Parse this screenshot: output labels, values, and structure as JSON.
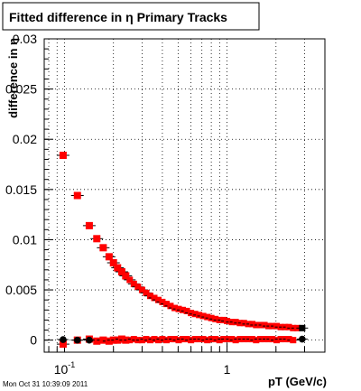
{
  "chart_data": {
    "type": "scatter",
    "title": "Fitted difference in η  Primary Tracks",
    "xlabel": "pT (GeV/c)",
    "ylabel": "difference in η",
    "x_scale": "log",
    "xlim": [
      0.075,
      4.0
    ],
    "ylim": [
      -0.0012,
      0.03
    ],
    "grid": true,
    "yticks": [
      {
        "value": 0,
        "label": "0"
      },
      {
        "value": 0.005,
        "label": "0.005"
      },
      {
        "value": 0.01,
        "label": "0.01"
      },
      {
        "value": 0.015,
        "label": "0.015"
      },
      {
        "value": 0.02,
        "label": "0.02"
      },
      {
        "value": 0.025,
        "label": "0.025"
      },
      {
        "value": 0.03,
        "label": "0.03"
      }
    ],
    "xticks": [
      {
        "value": 0.1,
        "label": "10",
        "sup": "-1"
      },
      {
        "value": 1,
        "label": "1",
        "sup": ""
      }
    ],
    "series": [
      {
        "color": "#ff0000",
        "marker": "square",
        "x": [
          0.098,
          0.12,
          0.142,
          0.158,
          0.173,
          0.188,
          0.2,
          0.212,
          0.225,
          0.238,
          0.252,
          0.267,
          0.283,
          0.3,
          0.318,
          0.337,
          0.357,
          0.378,
          0.4,
          0.424,
          0.449,
          0.476,
          0.504,
          0.534,
          0.566,
          0.6,
          0.636,
          0.673,
          0.713,
          0.756,
          0.8,
          0.848,
          0.898,
          0.952,
          1.0,
          1.07,
          1.13,
          1.2,
          1.27,
          1.35,
          1.43,
          1.51,
          1.6,
          1.7,
          1.8,
          1.9,
          2.02,
          2.14,
          2.27,
          2.4,
          2.55,
          2.7
        ],
        "y": [
          0.0184,
          0.0144,
          0.0114,
          0.0101,
          0.0092,
          0.0083,
          0.0077,
          0.0072,
          0.0068,
          0.0064,
          0.006,
          0.0056,
          0.0053,
          0.005,
          0.0047,
          0.0044,
          0.0042,
          0.004,
          0.0038,
          0.0036,
          0.0034,
          0.0032,
          0.0031,
          0.003,
          0.0029,
          0.0027,
          0.0026,
          0.0025,
          0.0024,
          0.0023,
          0.0022,
          0.0021,
          0.002,
          0.002,
          0.0019,
          0.0018,
          0.0018,
          0.0017,
          0.0017,
          0.0016,
          0.0016,
          0.0015,
          0.0015,
          0.0015,
          0.0014,
          0.0014,
          0.0014,
          0.0013,
          0.0013,
          0.0013,
          0.0012,
          0.0012
        ]
      },
      {
        "color": "#ff0000",
        "marker": "square",
        "x": [
          0.098,
          0.12,
          0.142,
          0.158,
          0.173,
          0.188,
          0.2,
          0.212,
          0.225,
          0.238,
          0.252,
          0.267,
          0.283,
          0.3,
          0.318,
          0.337,
          0.357,
          0.378,
          0.4,
          0.424,
          0.449,
          0.476,
          0.504,
          0.534,
          0.566,
          0.6,
          0.636,
          0.673,
          0.713,
          0.756,
          0.8,
          0.848,
          0.898,
          0.952,
          1.0,
          1.07,
          1.13,
          1.2,
          1.27,
          1.35,
          1.43,
          1.51,
          1.6,
          1.7,
          1.8,
          1.9,
          2.02,
          2.14,
          2.27,
          2.4,
          2.55
        ],
        "y": [
          -0.0004,
          0.0,
          0.0001,
          -0.0001,
          0.0,
          -0.0001,
          0.0,
          0.0,
          0.0001,
          0.0,
          0.0,
          0.0001,
          0.0,
          0.0,
          0.0001,
          0.0,
          0.0001,
          0.0,
          0.0001,
          0.0,
          0.0001,
          0.0001,
          0.0,
          0.0001,
          0.0001,
          0.0,
          0.0001,
          0.0001,
          0.0001,
          0.0,
          0.0001,
          0.0001,
          0.0,
          0.0001,
          0.0001,
          0.0001,
          0.0,
          0.0001,
          0.0001,
          0.0001,
          0.0001,
          0.0,
          0.0001,
          0.0001,
          0.0001,
          0.0001,
          0.0,
          0.0001,
          0.0001,
          0.0001,
          0.0
        ]
      },
      {
        "color": "#000000",
        "marker": "circle",
        "x": [
          0.098,
          0.12,
          0.142,
          2.9
        ],
        "y": [
          5e-05,
          0.0,
          0.0,
          0.0001
        ]
      },
      {
        "color": "#000000",
        "marker": "square",
        "x": [
          2.9
        ],
        "y": [
          0.0012
        ]
      }
    ]
  },
  "footer": {
    "timestamp": "Mon Oct 31 10:39:09 2011"
  }
}
